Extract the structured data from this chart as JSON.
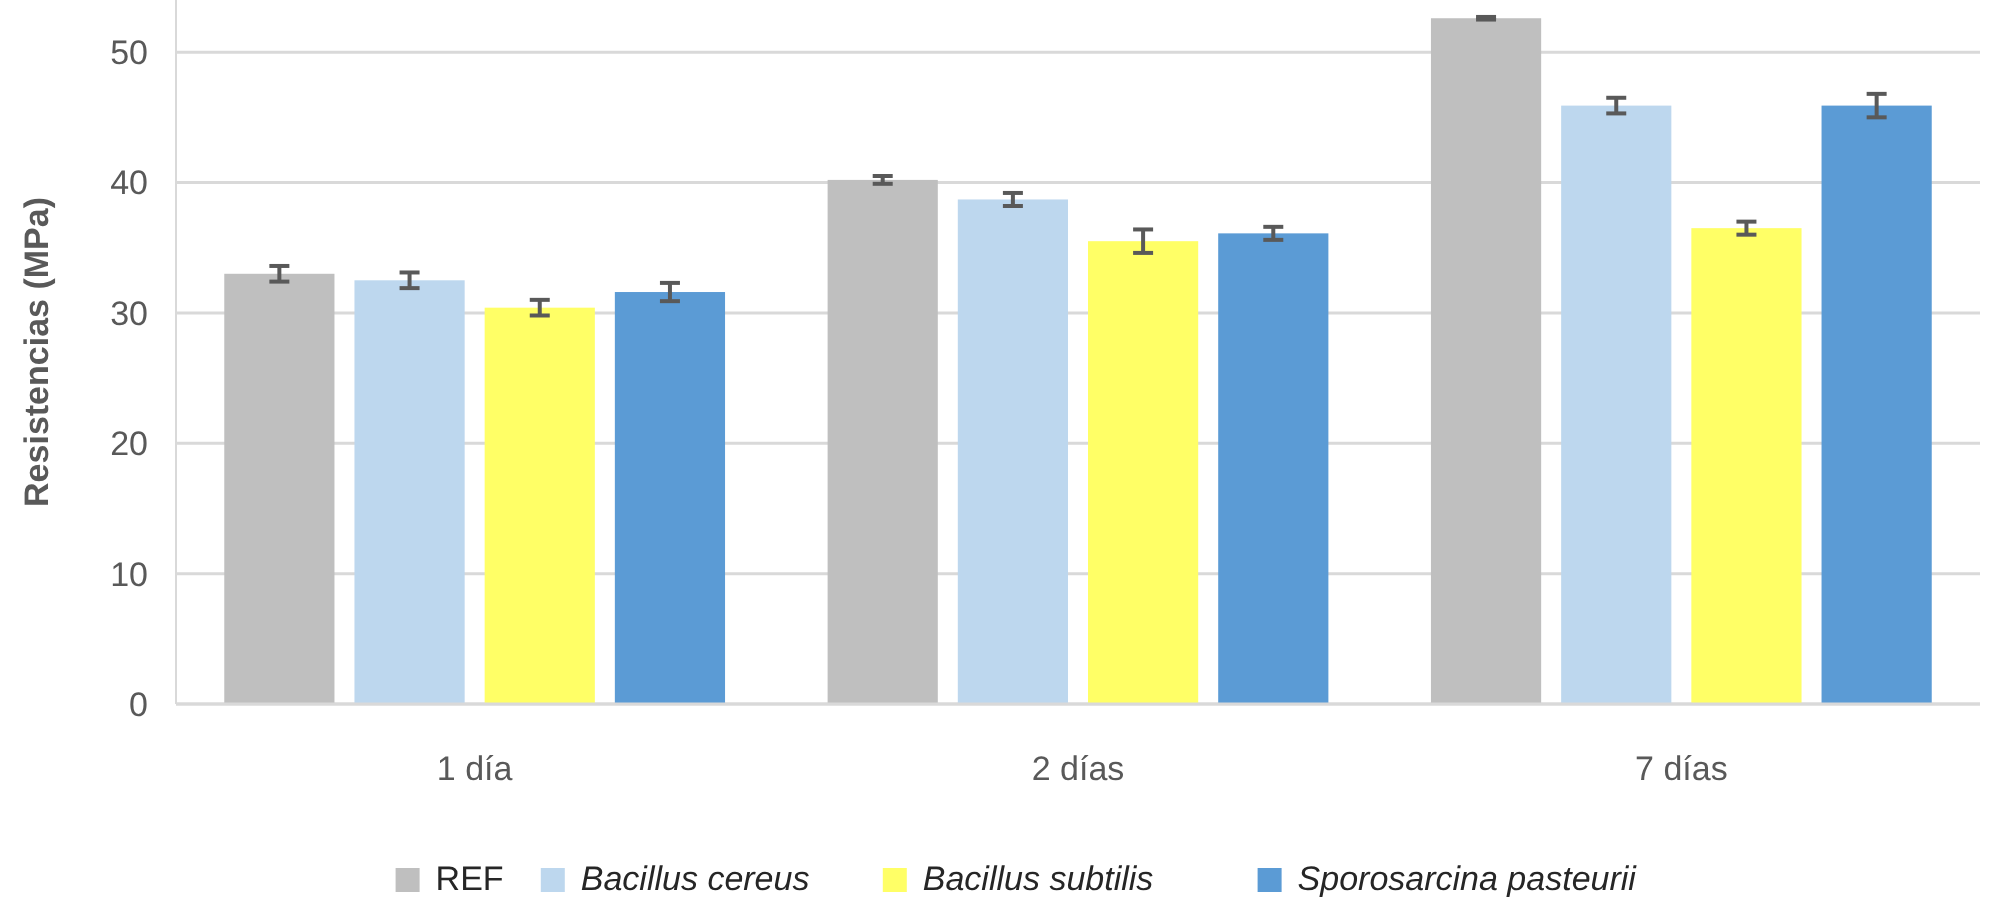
{
  "chart_data": {
    "type": "bar",
    "ylabel": "Resistencias (MPa)",
    "categories": [
      "1 día",
      "2 días",
      "7 días"
    ],
    "series": [
      {
        "name": "REF",
        "color": "#bfbfbf",
        "values": [
          33.0,
          40.2,
          52.6
        ],
        "errors": [
          0.6,
          0.3,
          0.1
        ]
      },
      {
        "name": "Bacillus cereus",
        "color": "#bdd7ee",
        "values": [
          32.5,
          38.7,
          45.9
        ],
        "errors": [
          0.6,
          0.5,
          0.6
        ]
      },
      {
        "name": "Bacillus subtilis",
        "color": "#ffff66",
        "values": [
          30.4,
          35.5,
          36.5
        ],
        "errors": [
          0.6,
          0.9,
          0.5
        ]
      },
      {
        "name": "Sporosarcina pasteurii",
        "color": "#5b9bd5",
        "values": [
          31.6,
          36.1,
          45.9
        ],
        "errors": [
          0.7,
          0.5,
          0.9
        ]
      }
    ],
    "ylim": [
      0,
      54
    ],
    "yticks": [
      0,
      10,
      20,
      30,
      40,
      50
    ],
    "grid": "y",
    "legend": "bottom"
  }
}
